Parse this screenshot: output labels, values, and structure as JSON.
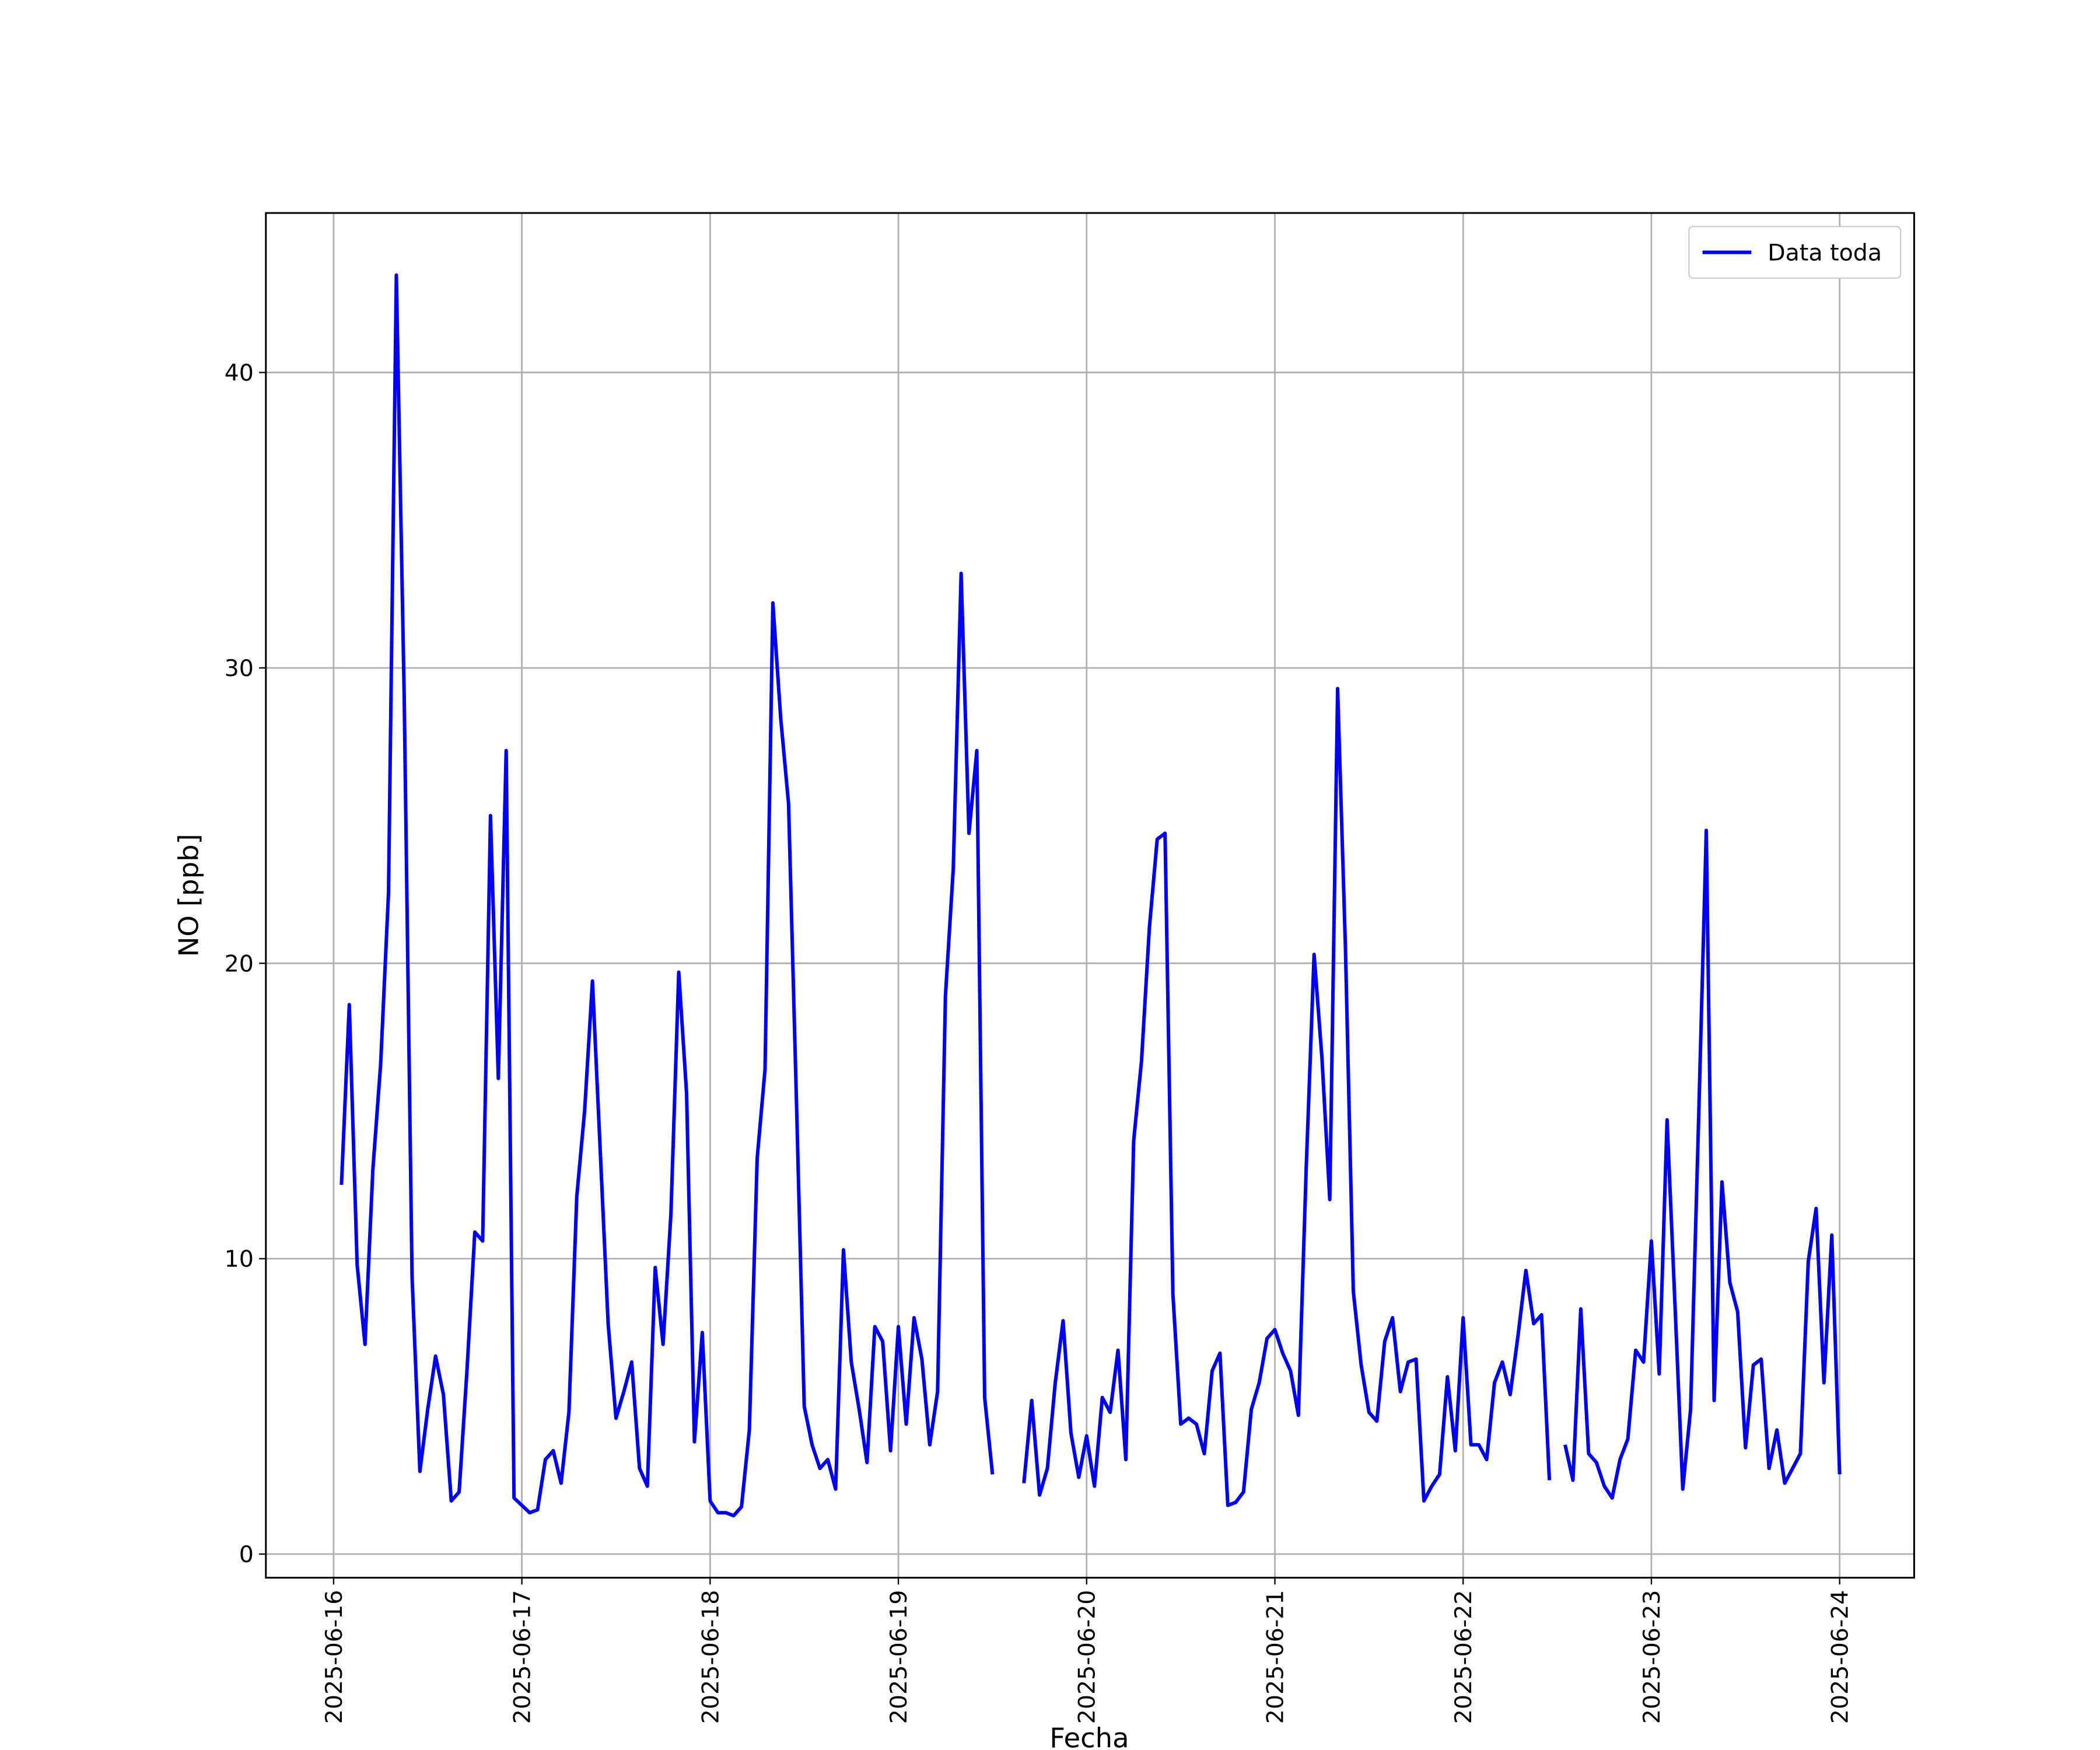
{
  "chart_data": {
    "type": "line",
    "xlabel": "Fecha",
    "ylabel": "NO [ppb]",
    "x": [
      "2025-06-16 01:00",
      "2025-06-16 02:00",
      "2025-06-16 03:00",
      "2025-06-16 04:00",
      "2025-06-16 05:00",
      "2025-06-16 06:00",
      "2025-06-16 07:00",
      "2025-06-16 08:00",
      "2025-06-16 09:00",
      "2025-06-16 10:00",
      "2025-06-16 11:00",
      "2025-06-16 12:00",
      "2025-06-16 13:00",
      "2025-06-16 14:00",
      "2025-06-16 15:00",
      "2025-06-16 16:00",
      "2025-06-16 17:00",
      "2025-06-16 18:00",
      "2025-06-16 19:00",
      "2025-06-16 20:00",
      "2025-06-16 21:00",
      "2025-06-16 22:00",
      "2025-06-16 23:00",
      "2025-06-17 00:00",
      "2025-06-17 01:00",
      "2025-06-17 02:00",
      "2025-06-17 03:00",
      "2025-06-17 04:00",
      "2025-06-17 05:00",
      "2025-06-17 06:00",
      "2025-06-17 07:00",
      "2025-06-17 08:00",
      "2025-06-17 09:00",
      "2025-06-17 10:00",
      "2025-06-17 11:00",
      "2025-06-17 12:00",
      "2025-06-17 13:00",
      "2025-06-17 14:00",
      "2025-06-17 15:00",
      "2025-06-17 16:00",
      "2025-06-17 17:00",
      "2025-06-17 18:00",
      "2025-06-17 19:00",
      "2025-06-17 20:00",
      "2025-06-17 21:00",
      "2025-06-17 22:00",
      "2025-06-17 23:00",
      "2025-06-18 00:00",
      "2025-06-18 01:00",
      "2025-06-18 02:00",
      "2025-06-18 03:00",
      "2025-06-18 04:00",
      "2025-06-18 05:00",
      "2025-06-18 06:00",
      "2025-06-18 07:00",
      "2025-06-18 08:00",
      "2025-06-18 09:00",
      "2025-06-18 10:00",
      "2025-06-18 11:00",
      "2025-06-18 12:00",
      "2025-06-18 13:00",
      "2025-06-18 14:00",
      "2025-06-18 15:00",
      "2025-06-18 16:00",
      "2025-06-18 17:00",
      "2025-06-18 18:00",
      "2025-06-18 19:00",
      "2025-06-18 20:00",
      "2025-06-18 21:00",
      "2025-06-18 22:00",
      "2025-06-18 23:00",
      "2025-06-19 00:00",
      "2025-06-19 01:00",
      "2025-06-19 02:00",
      "2025-06-19 03:00",
      "2025-06-19 04:00",
      "2025-06-19 05:00",
      "2025-06-19 06:00",
      "2025-06-19 07:00",
      "2025-06-19 08:00",
      "2025-06-19 09:00",
      "2025-06-19 10:00",
      "2025-06-19 11:00",
      "2025-06-19 12:00",
      "2025-06-19 13:00",
      "2025-06-19 14:00",
      "2025-06-19 15:00",
      "2025-06-19 16:00",
      "2025-06-19 17:00",
      "2025-06-19 18:00",
      "2025-06-19 19:00",
      "2025-06-19 20:00",
      "2025-06-19 21:00",
      "2025-06-19 22:00",
      "2025-06-19 23:00",
      "2025-06-20 00:00",
      "2025-06-20 01:00",
      "2025-06-20 02:00",
      "2025-06-20 03:00",
      "2025-06-20 04:00",
      "2025-06-20 05:00",
      "2025-06-20 06:00",
      "2025-06-20 07:00",
      "2025-06-20 08:00",
      "2025-06-20 09:00",
      "2025-06-20 10:00",
      "2025-06-20 11:00",
      "2025-06-20 12:00",
      "2025-06-20 13:00",
      "2025-06-20 14:00",
      "2025-06-20 15:00",
      "2025-06-20 16:00",
      "2025-06-20 17:00",
      "2025-06-20 18:00",
      "2025-06-20 19:00",
      "2025-06-20 20:00",
      "2025-06-20 21:00",
      "2025-06-20 22:00",
      "2025-06-20 23:00",
      "2025-06-21 00:00",
      "2025-06-21 01:00",
      "2025-06-21 02:00",
      "2025-06-21 03:00",
      "2025-06-21 04:00",
      "2025-06-21 05:00",
      "2025-06-21 06:00",
      "2025-06-21 07:00",
      "2025-06-21 08:00",
      "2025-06-21 09:00",
      "2025-06-21 10:00",
      "2025-06-21 11:00",
      "2025-06-21 12:00",
      "2025-06-21 13:00",
      "2025-06-21 14:00",
      "2025-06-21 15:00",
      "2025-06-21 16:00",
      "2025-06-21 17:00",
      "2025-06-21 18:00",
      "2025-06-21 19:00",
      "2025-06-21 20:00",
      "2025-06-21 21:00",
      "2025-06-21 22:00",
      "2025-06-21 23:00",
      "2025-06-22 00:00",
      "2025-06-22 01:00",
      "2025-06-22 02:00",
      "2025-06-22 03:00",
      "2025-06-22 04:00",
      "2025-06-22 05:00",
      "2025-06-22 06:00",
      "2025-06-22 07:00",
      "2025-06-22 08:00",
      "2025-06-22 09:00",
      "2025-06-22 10:00",
      "2025-06-22 11:00",
      "2025-06-22 12:00",
      "2025-06-22 13:00",
      "2025-06-22 14:00",
      "2025-06-22 15:00",
      "2025-06-22 16:00",
      "2025-06-22 17:00",
      "2025-06-22 18:00",
      "2025-06-22 19:00",
      "2025-06-22 20:00",
      "2025-06-22 21:00",
      "2025-06-22 22:00",
      "2025-06-22 23:00",
      "2025-06-23 00:00",
      "2025-06-23 01:00",
      "2025-06-23 02:00",
      "2025-06-23 03:00",
      "2025-06-23 04:00",
      "2025-06-23 05:00",
      "2025-06-23 06:00",
      "2025-06-23 07:00",
      "2025-06-23 08:00",
      "2025-06-23 09:00",
      "2025-06-23 10:00",
      "2025-06-23 11:00",
      "2025-06-23 12:00",
      "2025-06-23 13:00",
      "2025-06-23 14:00",
      "2025-06-23 15:00",
      "2025-06-23 16:00",
      "2025-06-23 17:00",
      "2025-06-23 18:00",
      "2025-06-23 19:00",
      "2025-06-23 20:00",
      "2025-06-23 21:00",
      "2025-06-23 22:00",
      "2025-06-23 23:00",
      "2025-06-24 00:00"
    ],
    "series": [
      {
        "name": "Data toda",
        "color": "#0000ff",
        "values": [
          12.5,
          18.6,
          9.8,
          7.1,
          13,
          16.6,
          22.4,
          43.3,
          29,
          9.4,
          2.8,
          4.9,
          6.7,
          5.4,
          1.8,
          2.1,
          6.2,
          10.9,
          10.6,
          25,
          16.1,
          27.2,
          1.9,
          1.65,
          1.4,
          1.5,
          3.2,
          3.5,
          2.4,
          4.8,
          12.1,
          15,
          19.4,
          13.6,
          7.8,
          4.6,
          5.5,
          6.5,
          2.9,
          2.3,
          9.7,
          7.1,
          11.5,
          19.7,
          15.6,
          3.8,
          7.5,
          1.8,
          1.4,
          1.4,
          1.3,
          1.6,
          4.2,
          13.4,
          16.4,
          32.2,
          28.3,
          25.4,
          15.4,
          5,
          3.7,
          2.9,
          3.2,
          2.2,
          10.3,
          6.5,
          4.9,
          3.1,
          7.7,
          7.2,
          3.5,
          7.7,
          4.4,
          8,
          6.6,
          3.7,
          5.5,
          18.9,
          23.2,
          33.2,
          24.4,
          27.2,
          5.3,
          2.7,
          null,
          null,
          null,
          2.4,
          5.2,
          2,
          2.9,
          5.8,
          7.9,
          4.1,
          2.6,
          4,
          2.3,
          5.3,
          4.8,
          6.9,
          3.2,
          14,
          16.7,
          21.2,
          24.2,
          24.4,
          8.8,
          4.4,
          4.6,
          4.4,
          3.4,
          6.2,
          6.8,
          1.65,
          1.75,
          2.1,
          4.9,
          5.8,
          7.3,
          7.6,
          6.8,
          6.2,
          4.7,
          13.1,
          20.3,
          16.8,
          12,
          29.3,
          20.5,
          8.9,
          6.4,
          4.8,
          4.5,
          7.2,
          8,
          5.5,
          6.5,
          6.6,
          1.8,
          2.3,
          2.7,
          6,
          3.5,
          8,
          3.7,
          3.7,
          3.2,
          5.8,
          6.5,
          5.4,
          7.4,
          9.6,
          7.8,
          8.1,
          2.5,
          null,
          3.7,
          2.5,
          8.3,
          3.4,
          3.1,
          2.3,
          1.9,
          3.2,
          3.9,
          6.9,
          6.5,
          10.6,
          6.1,
          14.7,
          8.5,
          2.2,
          4.9,
          14.5,
          24.5,
          5.2,
          12.6,
          9.2,
          8.2,
          3.6,
          6.4,
          6.6,
          2.9,
          4.2,
          2.4,
          2.9,
          3.4,
          9.9,
          11.7,
          5.8,
          10.8,
          2.7
        ]
      }
    ],
    "xlim": [
      "2025-06-15 15:22",
      "2025-06-24 09:30"
    ],
    "xticks": [
      "2025-06-16",
      "2025-06-17",
      "2025-06-18",
      "2025-06-19",
      "2025-06-20",
      "2025-06-21",
      "2025-06-22",
      "2025-06-23",
      "2025-06-24"
    ],
    "ylim": [
      -0.8,
      45.4
    ],
    "yticks": [
      0,
      10,
      20,
      30,
      40
    ],
    "grid": true,
    "legend": "upper right"
  }
}
